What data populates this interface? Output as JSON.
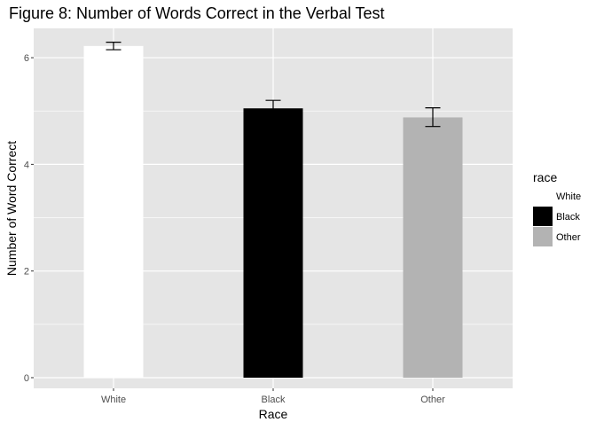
{
  "chart_data": {
    "type": "bar",
    "title": "Figure 8: Number of Words Correct in the Verbal Test",
    "xlabel": "Race",
    "ylabel": "Number of Word Correct",
    "categories": [
      "White",
      "Black",
      "Other"
    ],
    "values": [
      6.22,
      5.05,
      4.88
    ],
    "error_bars": [
      {
        "low": 6.15,
        "high": 6.29
      },
      {
        "low": 4.89,
        "high": 5.2
      },
      {
        "low": 4.71,
        "high": 5.06
      }
    ],
    "ylim": [
      -0.2,
      6.55
    ],
    "yticks": [
      0,
      2,
      4,
      6
    ],
    "grid": true,
    "legend": {
      "title": "race",
      "position": "right",
      "entries": [
        "White",
        "Black",
        "Other"
      ]
    },
    "colors": {
      "panel_background": "#e5e5e5",
      "grid": "#ffffff",
      "bars": [
        "#ffffff",
        "#000000",
        "#b3b3b3"
      ],
      "error_bar": "#000000"
    }
  }
}
